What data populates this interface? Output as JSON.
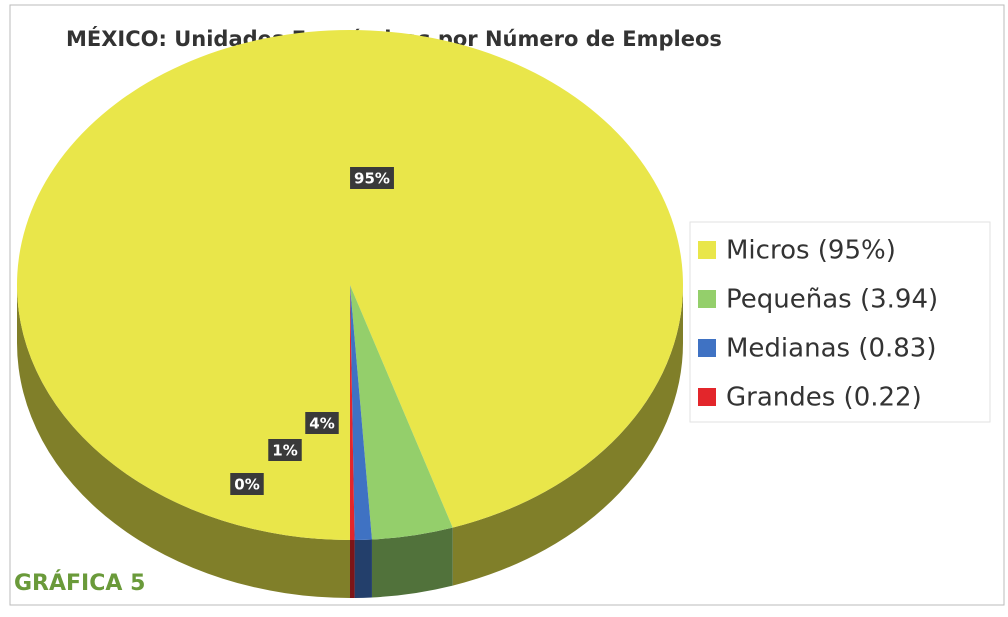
{
  "chart_data": {
    "type": "pie3d",
    "title": "MÉXICO: Unidades Económicas por Número de Empleos",
    "categories": [
      "Micros (95%)",
      "Pequeñas (3.94)",
      "Medianas (0.83)",
      "Grandes (0.22)"
    ],
    "values": [
      95,
      3.94,
      0.83,
      0.22
    ],
    "value_labels": [
      "95%",
      "4%",
      "1%",
      "0%"
    ],
    "colors": [
      "#e9e64a",
      "#94cf6b",
      "#3f72c3",
      "#e3262b"
    ],
    "legend": "right"
  },
  "caption": "GRÁFICA 5"
}
